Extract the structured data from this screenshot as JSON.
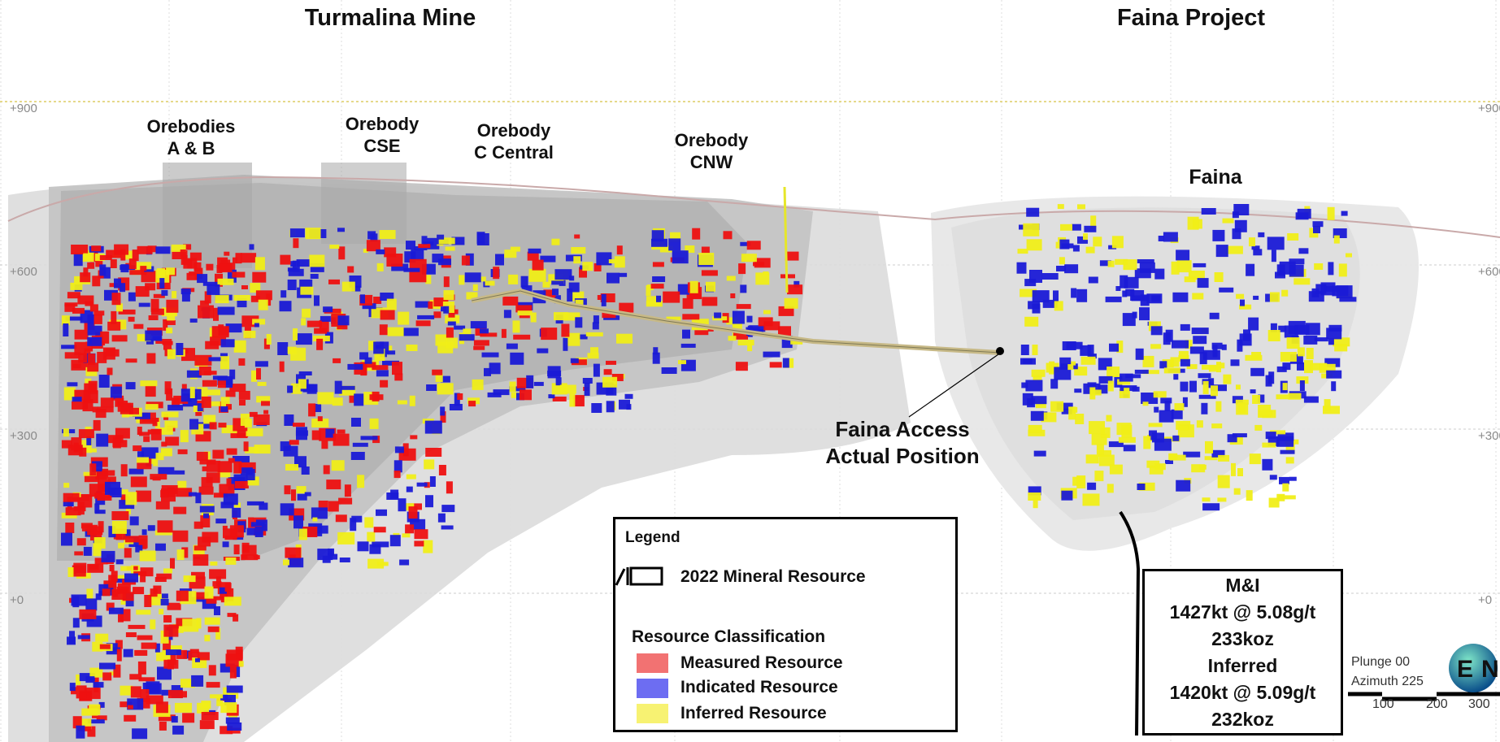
{
  "titles": {
    "left": "Turmalina Mine",
    "right": "Faina Project"
  },
  "elevation_labels": [
    "+900",
    "+600",
    "+300",
    "+0"
  ],
  "orebodies": {
    "ab": [
      "Orebodies",
      "A & B"
    ],
    "cse": [
      "Orebody",
      "CSE"
    ],
    "cc": [
      "Orebody",
      "C Central"
    ],
    "cnw": [
      "Orebody",
      "CNW"
    ],
    "faina": "Faina"
  },
  "access_label": [
    "Faina Access",
    "Actual Position"
  ],
  "legend": {
    "title": "Legend",
    "resource_line": "2022 Mineral Resource",
    "classification_title": "Resource Classification",
    "items": [
      {
        "label": "Measured Resource",
        "color": "#f27272"
      },
      {
        "label": "Indicated Resource",
        "color": "#6d6df2"
      },
      {
        "label": "Inferred Resource",
        "color": "#f7f272"
      }
    ]
  },
  "faina_stats": {
    "mi_title": "M&I",
    "mi_grade": "1427kt @ 5.08g/t",
    "mi_oz": "233koz",
    "inf_title": "Inferred",
    "inf_grade": "1420kt @ 5.09g/t",
    "inf_oz": "232koz"
  },
  "view": {
    "plunge": "Plunge 00",
    "azimuth": "Azimuth 225",
    "scale_ticks": [
      "100",
      "200",
      "300"
    ]
  },
  "compass": {
    "letters": [
      "E",
      "N"
    ]
  },
  "colors": {
    "measured": "#ee1111",
    "indicated": "#1a1ad6",
    "inferred": "#f0ee18",
    "development": "#c7b987"
  }
}
